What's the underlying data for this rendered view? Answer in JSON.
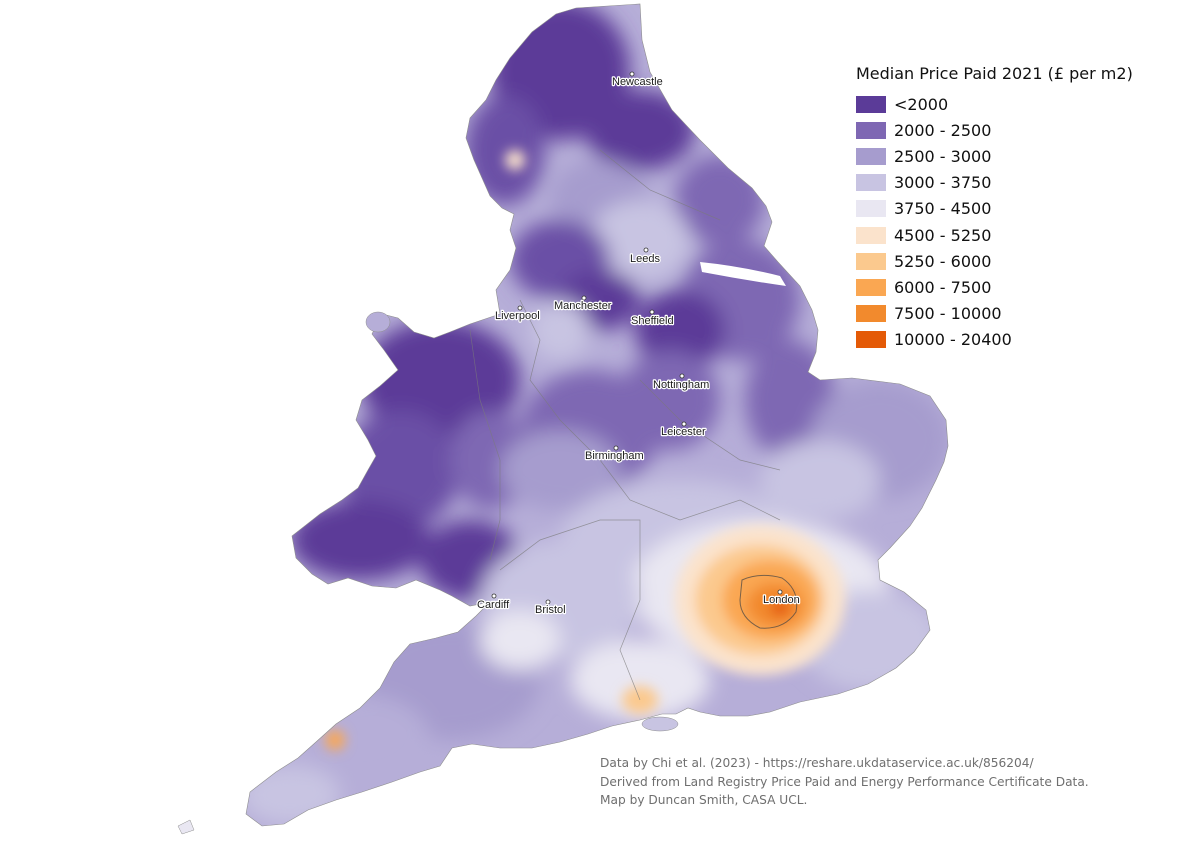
{
  "map": {
    "legend_title": "Median Price Paid 2021 (£ per m2)",
    "classes": [
      {
        "label": "<2000",
        "color": "#5b3b98"
      },
      {
        "label": "2000 - 2500",
        "color": "#7e67b3"
      },
      {
        "label": "2500 - 3000",
        "color": "#a69cce"
      },
      {
        "label": "3000 - 3750",
        "color": "#c8c4e2"
      },
      {
        "label": "3750 - 4500",
        "color": "#e9e7f2"
      },
      {
        "label": "4500 - 5250",
        "color": "#fbe3cc"
      },
      {
        "label": "5250 - 6000",
        "color": "#fbc98e"
      },
      {
        "label": "6000 - 7500",
        "color": "#faa752"
      },
      {
        "label": "7500 - 10000",
        "color": "#f28a2d"
      },
      {
        "label": "10000 - 20400",
        "color": "#e45a07"
      }
    ],
    "cities": {
      "newcastle": "Newcastle",
      "leeds": "Leeds",
      "manchester": "Manchester",
      "liverpool": "Liverpool",
      "sheffield": "Sheffield",
      "nottingham": "Nottingham",
      "leicester": "Leicester",
      "birmingham": "Birmingham",
      "london": "London",
      "cardiff": "Cardiff",
      "bristol": "Bristol"
    },
    "credits": [
      "Data by Chi et al. (2023) - https://reshare.ukdataservice.ac.uk/856204/",
      "Derived from Land Registry Price Paid and Energy Performance Certificate Data.",
      "Map by Duncan Smith, CASA UCL."
    ]
  }
}
